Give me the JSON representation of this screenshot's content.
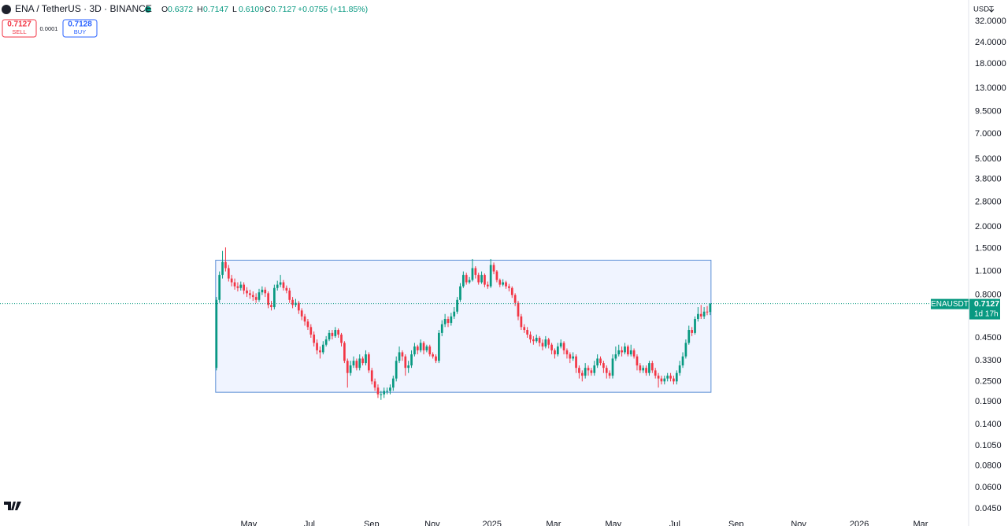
{
  "chart_data": {
    "type": "candlestick",
    "title": "ENA / TetherUS · 3D · BINANCE",
    "ohlc_labels": [
      "O",
      "H",
      "L",
      "C"
    ],
    "change": "+0.0755 (+11.85%)",
    "sell_label": "SELL",
    "buy_label": "BUY",
    "buy_price": 0.7128,
    "spread": 0.0001,
    "currency": "USDT",
    "symbol": "ENAUSDT",
    "countdown": "1d 17h",
    "up_color": "#089981",
    "down_color": "#f23645",
    "log_scale": true,
    "range_box": {
      "top": 1.28,
      "bottom": 0.216
    },
    "categories": [
      null,
      null,
      null,
      null,
      null,
      null,
      null,
      null,
      null,
      null,
      null,
      null,
      null,
      null,
      null,
      null,
      null,
      null,
      null,
      null,
      null,
      null,
      null,
      null,
      null,
      null,
      null,
      null,
      null,
      null,
      null,
      null,
      null,
      null,
      null,
      null,
      null,
      null,
      null,
      null,
      null,
      null,
      null,
      null,
      null,
      null,
      null,
      null,
      null,
      null,
      null,
      null,
      null,
      null,
      null,
      null,
      null,
      null,
      null,
      null,
      null,
      null,
      null,
      null,
      null,
      null,
      null,
      null,
      null,
      null,
      null,
      null,
      null,
      null,
      null,
      null,
      null,
      null,
      null,
      null,
      null,
      null,
      null,
      null,
      null,
      null,
      null,
      null,
      null,
      null,
      null,
      null,
      null,
      null,
      null,
      null,
      null,
      null,
      null,
      null,
      null,
      null,
      null,
      null,
      null,
      null,
      null,
      null,
      null,
      null,
      null,
      null,
      null,
      null,
      null,
      null,
      null,
      null,
      null,
      null,
      null,
      null,
      null,
      null,
      null,
      null,
      null,
      null,
      null,
      null,
      null,
      null,
      null,
      null,
      null,
      null,
      null,
      null,
      null,
      null,
      null,
      null,
      null,
      null,
      null,
      null,
      null,
      null,
      null,
      null,
      null,
      null,
      null,
      null,
      null,
      null,
      null,
      null,
      null,
      null,
      null,
      null,
      null
    ],
    "open": [
      0.3,
      0.75,
      1.05,
      1.25,
      1.15,
      1.0,
      0.95,
      0.9,
      0.88,
      0.92,
      0.85,
      0.82,
      0.8,
      0.78,
      0.75,
      0.83,
      0.86,
      0.82,
      0.7,
      0.68,
      0.88,
      0.92,
      0.95,
      0.88,
      0.85,
      0.75,
      0.7,
      0.72,
      0.65,
      0.6,
      0.56,
      0.52,
      0.47,
      0.42,
      0.38,
      0.37,
      0.41,
      0.44,
      0.48,
      0.46,
      0.5,
      0.47,
      0.42,
      0.33,
      0.28,
      0.31,
      0.33,
      0.3,
      0.34,
      0.32,
      0.36,
      0.29,
      0.25,
      0.23,
      0.21,
      0.21,
      0.22,
      0.22,
      0.23,
      0.26,
      0.33,
      0.37,
      0.35,
      0.3,
      0.31,
      0.36,
      0.4,
      0.38,
      0.42,
      0.38,
      0.4,
      0.36,
      0.35,
      0.33,
      0.48,
      0.54,
      0.58,
      0.55,
      0.6,
      0.64,
      0.75,
      0.9,
      1.05,
      0.95,
      0.98,
      1.15,
      1.05,
      0.95,
      1.05,
      0.92,
      0.9,
      1.2,
      1.1,
      0.98,
      0.92,
      0.95,
      0.9,
      0.88,
      0.8,
      0.72,
      0.6,
      0.52,
      0.5,
      0.47,
      0.44,
      0.43,
      0.45,
      0.42,
      0.4,
      0.44,
      0.41,
      0.38,
      0.36,
      0.4,
      0.42,
      0.38,
      0.36,
      0.34,
      0.35,
      0.3,
      0.28,
      0.27,
      0.3,
      0.29,
      0.28,
      0.31,
      0.34,
      0.32,
      0.3,
      0.28,
      0.27,
      0.34,
      0.36,
      0.38,
      0.37,
      0.4,
      0.36,
      0.38,
      0.35,
      0.31,
      0.29,
      0.3,
      0.28,
      0.32,
      0.29,
      0.27,
      0.26,
      0.25,
      0.26,
      0.27,
      0.26,
      0.25,
      0.28,
      0.31,
      0.35,
      0.42,
      0.5,
      0.48,
      0.58,
      0.62,
      0.6,
      0.64,
      0.6372
    ],
    "high": [
      0.78,
      1.1,
      1.45,
      1.52,
      1.2,
      1.05,
      1.0,
      0.95,
      0.96,
      0.95,
      0.89,
      0.86,
      0.84,
      0.82,
      0.87,
      0.9,
      0.89,
      0.84,
      0.74,
      0.92,
      0.97,
      1.05,
      0.98,
      0.91,
      0.88,
      0.78,
      0.76,
      0.74,
      0.67,
      0.62,
      0.58,
      0.54,
      0.49,
      0.44,
      0.4,
      0.43,
      0.46,
      0.5,
      0.5,
      0.52,
      0.51,
      0.48,
      0.43,
      0.34,
      0.33,
      0.35,
      0.34,
      0.36,
      0.35,
      0.38,
      0.37,
      0.3,
      0.26,
      0.24,
      0.22,
      0.23,
      0.23,
      0.24,
      0.27,
      0.35,
      0.4,
      0.38,
      0.36,
      0.33,
      0.38,
      0.42,
      0.41,
      0.44,
      0.43,
      0.41,
      0.41,
      0.37,
      0.36,
      0.5,
      0.57,
      0.62,
      0.6,
      0.63,
      0.68,
      0.78,
      0.94,
      1.1,
      1.08,
      1.02,
      1.3,
      1.18,
      1.08,
      1.1,
      1.07,
      0.96,
      1.3,
      1.24,
      1.12,
      1.0,
      0.99,
      0.97,
      0.93,
      0.9,
      0.82,
      0.74,
      0.62,
      0.54,
      0.52,
      0.49,
      0.46,
      0.47,
      0.46,
      0.44,
      0.46,
      0.45,
      0.42,
      0.39,
      0.42,
      0.44,
      0.43,
      0.39,
      0.37,
      0.37,
      0.36,
      0.31,
      0.29,
      0.32,
      0.31,
      0.3,
      0.33,
      0.36,
      0.35,
      0.33,
      0.31,
      0.29,
      0.36,
      0.4,
      0.41,
      0.4,
      0.42,
      0.41,
      0.41,
      0.39,
      0.36,
      0.32,
      0.31,
      0.31,
      0.33,
      0.33,
      0.3,
      0.28,
      0.27,
      0.27,
      0.28,
      0.28,
      0.27,
      0.29,
      0.33,
      0.37,
      0.44,
      0.53,
      0.52,
      0.6,
      0.68,
      0.7,
      0.68,
      0.69,
      0.7147
    ],
    "low": [
      0.29,
      0.72,
      1.0,
      1.1,
      0.96,
      0.9,
      0.86,
      0.84,
      0.85,
      0.81,
      0.78,
      0.76,
      0.74,
      0.72,
      0.73,
      0.8,
      0.78,
      0.67,
      0.65,
      0.66,
      0.85,
      0.89,
      0.85,
      0.82,
      0.72,
      0.67,
      0.68,
      0.62,
      0.57,
      0.53,
      0.5,
      0.45,
      0.4,
      0.36,
      0.34,
      0.36,
      0.4,
      0.43,
      0.44,
      0.45,
      0.45,
      0.4,
      0.32,
      0.23,
      0.27,
      0.3,
      0.29,
      0.29,
      0.31,
      0.31,
      0.28,
      0.24,
      0.22,
      0.2,
      0.195,
      0.2,
      0.21,
      0.21,
      0.22,
      0.25,
      0.32,
      0.33,
      0.27,
      0.28,
      0.3,
      0.35,
      0.36,
      0.37,
      0.36,
      0.37,
      0.35,
      0.34,
      0.32,
      0.32,
      0.46,
      0.52,
      0.52,
      0.53,
      0.58,
      0.62,
      0.73,
      0.88,
      0.92,
      0.93,
      0.96,
      1.0,
      0.92,
      0.93,
      0.89,
      0.87,
      0.88,
      1.06,
      0.95,
      0.89,
      0.9,
      0.87,
      0.84,
      0.77,
      0.69,
      0.57,
      0.5,
      0.48,
      0.45,
      0.42,
      0.41,
      0.42,
      0.4,
      0.38,
      0.39,
      0.39,
      0.36,
      0.34,
      0.35,
      0.39,
      0.36,
      0.34,
      0.32,
      0.33,
      0.28,
      0.26,
      0.25,
      0.26,
      0.27,
      0.27,
      0.27,
      0.3,
      0.31,
      0.28,
      0.26,
      0.26,
      0.26,
      0.33,
      0.35,
      0.35,
      0.36,
      0.35,
      0.35,
      0.34,
      0.29,
      0.28,
      0.28,
      0.27,
      0.27,
      0.28,
      0.26,
      0.23,
      0.24,
      0.24,
      0.25,
      0.25,
      0.24,
      0.24,
      0.27,
      0.3,
      0.34,
      0.41,
      0.46,
      0.47,
      0.56,
      0.58,
      0.58,
      0.61,
      0.6109
    ],
    "close": [
      0.75,
      1.05,
      1.25,
      1.15,
      1.0,
      0.95,
      0.9,
      0.88,
      0.92,
      0.85,
      0.82,
      0.8,
      0.78,
      0.75,
      0.83,
      0.86,
      0.82,
      0.7,
      0.68,
      0.88,
      0.92,
      0.95,
      0.88,
      0.85,
      0.75,
      0.7,
      0.72,
      0.65,
      0.6,
      0.56,
      0.52,
      0.47,
      0.42,
      0.38,
      0.37,
      0.41,
      0.44,
      0.48,
      0.46,
      0.5,
      0.47,
      0.42,
      0.33,
      0.28,
      0.31,
      0.33,
      0.3,
      0.34,
      0.32,
      0.36,
      0.29,
      0.25,
      0.23,
      0.21,
      0.21,
      0.22,
      0.22,
      0.23,
      0.26,
      0.33,
      0.37,
      0.35,
      0.3,
      0.31,
      0.36,
      0.4,
      0.38,
      0.42,
      0.38,
      0.4,
      0.36,
      0.35,
      0.33,
      0.48,
      0.54,
      0.58,
      0.55,
      0.6,
      0.64,
      0.75,
      0.9,
      1.05,
      0.95,
      0.98,
      1.15,
      1.05,
      0.95,
      1.05,
      0.92,
      0.9,
      1.2,
      1.1,
      0.98,
      0.92,
      0.95,
      0.9,
      0.88,
      0.8,
      0.72,
      0.6,
      0.52,
      0.5,
      0.47,
      0.44,
      0.43,
      0.45,
      0.42,
      0.4,
      0.44,
      0.41,
      0.38,
      0.36,
      0.4,
      0.42,
      0.38,
      0.36,
      0.34,
      0.35,
      0.3,
      0.28,
      0.27,
      0.3,
      0.29,
      0.28,
      0.31,
      0.34,
      0.32,
      0.3,
      0.28,
      0.27,
      0.34,
      0.36,
      0.38,
      0.37,
      0.4,
      0.36,
      0.38,
      0.35,
      0.31,
      0.29,
      0.3,
      0.28,
      0.32,
      0.29,
      0.27,
      0.26,
      0.25,
      0.26,
      0.27,
      0.26,
      0.25,
      0.28,
      0.31,
      0.35,
      0.42,
      0.5,
      0.48,
      0.58,
      0.62,
      0.6,
      0.64,
      0.6372,
      0.7127
    ],
    "xlim": [
      -71,
      246
    ],
    "xticks": [
      {
        "value": 10.6,
        "label": "May"
      },
      {
        "value": 30.5,
        "label": "Jul"
      },
      {
        "value": 50.9,
        "label": "Sep"
      },
      {
        "value": 70.8,
        "label": "Nov"
      },
      {
        "value": 90.4,
        "label": "2025"
      },
      {
        "value": 110.6,
        "label": "Mar"
      },
      {
        "value": 130.2,
        "label": "May"
      },
      {
        "value": 150.4,
        "label": "Jul"
      },
      {
        "value": 170.5,
        "label": "Sep"
      },
      {
        "value": 191,
        "label": "Nov"
      },
      {
        "value": 210.9,
        "label": "2026"
      },
      {
        "value": 231,
        "label": "Mar"
      }
    ],
    "ylim": [
      0.0388,
      42.6
    ],
    "yticks": [
      {
        "value": 32,
        "label": "32.0000"
      },
      {
        "value": 24,
        "label": "24.0000"
      },
      {
        "value": 18,
        "label": "18.0000"
      },
      {
        "value": 13,
        "label": "13.0000"
      },
      {
        "value": 9.5,
        "label": "9.5000"
      },
      {
        "value": 7,
        "label": "7.0000"
      },
      {
        "value": 5,
        "label": "5.0000"
      },
      {
        "value": 3.8,
        "label": "3.8000"
      },
      {
        "value": 2.8,
        "label": "2.8000"
      },
      {
        "value": 2,
        "label": "2.0000"
      },
      {
        "value": 1.5,
        "label": "1.5000"
      },
      {
        "value": 1.1,
        "label": "1.1000"
      },
      {
        "value": 0.8,
        "label": "0.8000"
      },
      {
        "value": 0.45,
        "label": "0.4500"
      },
      {
        "value": 0.33,
        "label": "0.3300"
      },
      {
        "value": 0.25,
        "label": "0.2500"
      },
      {
        "value": 0.19,
        "label": "0.1900"
      },
      {
        "value": 0.14,
        "label": "0.1400"
      },
      {
        "value": 0.105,
        "label": "0.1050"
      },
      {
        "value": 0.08,
        "label": "0.0800"
      },
      {
        "value": 0.06,
        "label": "0.0600"
      },
      {
        "value": 0.045,
        "label": "0.0450"
      }
    ]
  }
}
